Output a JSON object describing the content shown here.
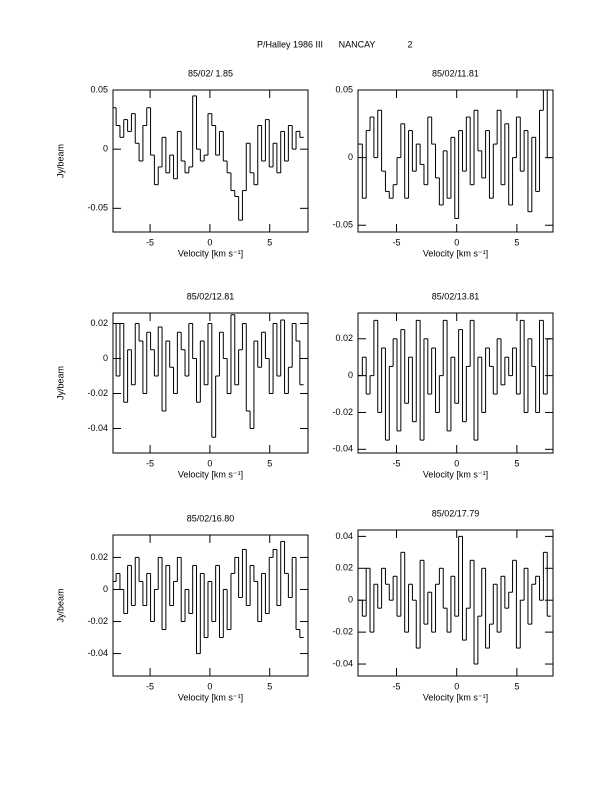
{
  "header": {
    "title": "P/Halley 1986 III",
    "observatory": "NANCAY",
    "page": "2"
  },
  "chart_data": [
    {
      "type": "step",
      "title": "85/02/ 1.85",
      "xlabel": "Velocity [km s⁻¹]",
      "ylabel": "Jy/beam",
      "xlim": [
        -8.1,
        8.2
      ],
      "ylim": [
        -0.07,
        0.05
      ],
      "xticks": [
        -5,
        0,
        5
      ],
      "yticks": [
        -0.05,
        0,
        0.05
      ],
      "color": "#000000",
      "x": [
        -8,
        -7.68,
        -7.36,
        -7.04,
        -6.72,
        -6.4,
        -6.08,
        -5.76,
        -5.44,
        -5.12,
        -4.8,
        -4.48,
        -4.16,
        -3.84,
        -3.52,
        -3.2,
        -2.88,
        -2.56,
        -2.24,
        -1.92,
        -1.6,
        -1.28,
        -0.96,
        -0.64,
        -0.32,
        0,
        0.32,
        0.64,
        0.96,
        1.28,
        1.6,
        1.92,
        2.24,
        2.56,
        2.88,
        3.2,
        3.52,
        3.84,
        4.16,
        4.48,
        4.8,
        5.12,
        5.44,
        5.76,
        6.08,
        6.4,
        6.72,
        7.04,
        7.36,
        7.68
      ],
      "values": [
        0.035,
        0.02,
        0.01,
        0.025,
        0.015,
        0.03,
        0.005,
        -0.01,
        0.02,
        0.035,
        -0.005,
        -0.03,
        -0.015,
        0.01,
        -0.02,
        -0.005,
        -0.025,
        0.015,
        -0.01,
        -0.02,
        -0.015,
        0.045,
        0.0,
        -0.01,
        -0.005,
        0.03,
        0.02,
        -0.005,
        0.015,
        -0.01,
        -0.02,
        -0.035,
        -0.04,
        -0.06,
        -0.035,
        0.005,
        -0.02,
        -0.03,
        0.02,
        -0.01,
        0.025,
        -0.015,
        0.005,
        -0.02,
        0.015,
        -0.01,
        0.02,
        0.0,
        0.015,
        0.01
      ]
    },
    {
      "type": "step",
      "title": "85/02/11.81",
      "xlabel": "Velocity [km s⁻¹]",
      "xlim": [
        -8.2,
        8.0
      ],
      "ylim": [
        -0.055,
        0.05
      ],
      "xticks": [
        -5,
        0,
        5
      ],
      "yticks": [
        -0.05,
        0,
        0.05
      ],
      "color": "#000000",
      "x": [
        -8,
        -7.68,
        -7.36,
        -7.04,
        -6.72,
        -6.4,
        -6.08,
        -5.76,
        -5.44,
        -5.12,
        -4.8,
        -4.48,
        -4.16,
        -3.84,
        -3.52,
        -3.2,
        -2.88,
        -2.56,
        -2.24,
        -1.92,
        -1.6,
        -1.28,
        -0.96,
        -0.64,
        -0.32,
        0,
        0.32,
        0.64,
        0.96,
        1.28,
        1.6,
        1.92,
        2.24,
        2.56,
        2.88,
        3.2,
        3.52,
        3.84,
        4.16,
        4.48,
        4.8,
        5.12,
        5.44,
        5.76,
        6.08,
        6.4,
        6.72,
        7.04,
        7.36,
        7.68
      ],
      "values": [
        0.01,
        -0.03,
        0.02,
        0.03,
        0.0,
        0.035,
        -0.01,
        -0.025,
        -0.03,
        -0.02,
        0.0,
        0.025,
        -0.03,
        0.02,
        -0.01,
        0.01,
        -0.005,
        -0.02,
        0.03,
        0.01,
        -0.015,
        -0.035,
        0.005,
        -0.03,
        0.015,
        -0.045,
        0.02,
        -0.01,
        0.03,
        -0.02,
        0.035,
        0.005,
        -0.015,
        0.02,
        -0.03,
        0.01,
        0.035,
        -0.02,
        0.025,
        -0.035,
        0.0,
        0.03,
        -0.01,
        0.02,
        -0.04,
        0.015,
        -0.025,
        0.035,
        0.05,
        0.0
      ]
    },
    {
      "type": "step",
      "title": "85/02/12.81",
      "xlabel": "Velocity [km s⁻¹]",
      "ylabel": "Jy/beam",
      "xlim": [
        -8.1,
        8.2
      ],
      "ylim": [
        -0.054,
        0.026
      ],
      "xticks": [
        -5,
        0,
        5
      ],
      "yticks": [
        -0.04,
        -0.02,
        0,
        0.02
      ],
      "color": "#000000",
      "x": [
        -8,
        -7.68,
        -7.36,
        -7.04,
        -6.72,
        -6.4,
        -6.08,
        -5.76,
        -5.44,
        -5.12,
        -4.8,
        -4.48,
        -4.16,
        -3.84,
        -3.52,
        -3.2,
        -2.88,
        -2.56,
        -2.24,
        -1.92,
        -1.6,
        -1.28,
        -0.96,
        -0.64,
        -0.32,
        0,
        0.32,
        0.64,
        0.96,
        1.28,
        1.6,
        1.92,
        2.24,
        2.56,
        2.88,
        3.2,
        3.52,
        3.84,
        4.16,
        4.48,
        4.8,
        5.12,
        5.44,
        5.76,
        6.08,
        6.4,
        6.72,
        7.04,
        7.36,
        7.68
      ],
      "values": [
        0.02,
        -0.01,
        0.02,
        -0.025,
        0.005,
        -0.015,
        0.02,
        0.01,
        -0.02,
        0.015,
        0.005,
        -0.01,
        0.018,
        -0.03,
        0.01,
        -0.005,
        -0.02,
        0.015,
        0.005,
        -0.01,
        0.02,
        0.0,
        -0.025,
        0.01,
        -0.015,
        0.02,
        -0.045,
        -0.01,
        0.015,
        0.0,
        -0.02,
        0.025,
        -0.015,
        0.005,
        0.02,
        -0.03,
        -0.04,
        0.01,
        -0.005,
        0.015,
        0.0,
        -0.02,
        0.02,
        -0.01,
        0.022,
        -0.02,
        -0.005,
        0.02,
        0.01,
        -0.015
      ]
    },
    {
      "type": "step",
      "title": "85/02/13.81",
      "xlabel": "Velocity [km s⁻¹]",
      "xlim": [
        -8.2,
        8.0
      ],
      "ylim": [
        -0.042,
        0.034
      ],
      "xticks": [
        -5,
        0,
        5
      ],
      "yticks": [
        -0.04,
        -0.02,
        0,
        0.02
      ],
      "color": "#000000",
      "x": [
        -8,
        -7.68,
        -7.36,
        -7.04,
        -6.72,
        -6.4,
        -6.08,
        -5.76,
        -5.44,
        -5.12,
        -4.8,
        -4.48,
        -4.16,
        -3.84,
        -3.52,
        -3.2,
        -2.88,
        -2.56,
        -2.24,
        -1.92,
        -1.6,
        -1.28,
        -0.96,
        -0.64,
        -0.32,
        0,
        0.32,
        0.64,
        0.96,
        1.28,
        1.6,
        1.92,
        2.24,
        2.56,
        2.88,
        3.2,
        3.52,
        3.84,
        4.16,
        4.48,
        4.8,
        5.12,
        5.44,
        5.76,
        6.08,
        6.4,
        6.72,
        7.04,
        7.36,
        7.68
      ],
      "values": [
        0.0,
        0.01,
        -0.01,
        0.0,
        0.03,
        -0.02,
        0.015,
        -0.035,
        0.005,
        0.02,
        -0.03,
        0.025,
        -0.015,
        0.01,
        -0.025,
        0.03,
        -0.035,
        0.02,
        -0.01,
        0.015,
        -0.02,
        0.0,
        0.03,
        -0.03,
        0.01,
        -0.015,
        0.025,
        -0.025,
        0.005,
        0.03,
        -0.035,
        0.01,
        -0.02,
        0.015,
        0.005,
        -0.01,
        0.02,
        -0.005,
        0.01,
        0.0,
        0.015,
        -0.01,
        0.03,
        -0.02,
        0.02,
        0.005,
        -0.02,
        0.03,
        -0.01,
        0.02
      ]
    },
    {
      "type": "step",
      "title": "85/02/16.80",
      "xlabel": "Velocity [km s⁻¹]",
      "ylabel": "Jy/beam",
      "xlim": [
        -8.1,
        8.2
      ],
      "ylim": [
        -0.054,
        0.034
      ],
      "xticks": [
        -5,
        0,
        5
      ],
      "yticks": [
        -0.04,
        -0.02,
        0,
        0.02
      ],
      "color": "#000000",
      "x": [
        -8,
        -7.68,
        -7.36,
        -7.04,
        -6.72,
        -6.4,
        -6.08,
        -5.76,
        -5.44,
        -5.12,
        -4.8,
        -4.48,
        -4.16,
        -3.84,
        -3.52,
        -3.2,
        -2.88,
        -2.56,
        -2.24,
        -1.92,
        -1.6,
        -1.28,
        -0.96,
        -0.64,
        -0.32,
        0,
        0.32,
        0.64,
        0.96,
        1.28,
        1.6,
        1.92,
        2.24,
        2.56,
        2.88,
        3.2,
        3.52,
        3.84,
        4.16,
        4.48,
        4.8,
        5.12,
        5.44,
        5.76,
        6.08,
        6.4,
        6.72,
        7.04,
        7.36,
        7.68
      ],
      "values": [
        0.005,
        0.01,
        0.0,
        -0.015,
        0.015,
        -0.01,
        0.02,
        0.005,
        -0.01,
        0.01,
        -0.02,
        0.0,
        0.02,
        -0.025,
        0.015,
        -0.01,
        0.005,
        0.02,
        -0.02,
        0.0,
        -0.015,
        0.015,
        -0.04,
        0.01,
        -0.03,
        0.005,
        -0.02,
        0.015,
        -0.03,
        0.0,
        -0.025,
        0.01,
        0.02,
        -0.005,
        0.025,
        -0.01,
        0.015,
        0.005,
        -0.02,
        0.01,
        -0.015,
        0.02,
        0.025,
        -0.01,
        0.03,
        0.01,
        -0.005,
        0.02,
        -0.025,
        -0.03
      ]
    },
    {
      "type": "step",
      "title": "85/02/17.79",
      "xlabel": "Velocity [km s⁻¹]",
      "xlim": [
        -8.2,
        8.0
      ],
      "ylim": [
        -0.0475,
        0.044
      ],
      "xticks": [
        -5,
        0,
        5
      ],
      "yticks": [
        -0.04,
        -0.02,
        0,
        0.02,
        0.04
      ],
      "color": "#000000",
      "x": [
        -8,
        -7.68,
        -7.36,
        -7.04,
        -6.72,
        -6.4,
        -6.08,
        -5.76,
        -5.44,
        -5.12,
        -4.8,
        -4.48,
        -4.16,
        -3.84,
        -3.52,
        -3.2,
        -2.88,
        -2.56,
        -2.24,
        -1.92,
        -1.6,
        -1.28,
        -0.96,
        -0.64,
        -0.32,
        0,
        0.32,
        0.64,
        0.96,
        1.28,
        1.6,
        1.92,
        2.24,
        2.56,
        2.88,
        3.2,
        3.52,
        3.84,
        4.16,
        4.48,
        4.8,
        5.12,
        5.44,
        5.76,
        6.08,
        6.4,
        6.72,
        7.04,
        7.36,
        7.68
      ],
      "values": [
        0.0,
        -0.01,
        0.02,
        -0.02,
        0.01,
        -0.005,
        0.02,
        0.01,
        0.0,
        0.015,
        -0.01,
        0.03,
        -0.02,
        0.01,
        0.0,
        -0.03,
        0.025,
        -0.015,
        0.005,
        -0.02,
        0.01,
        0.02,
        -0.005,
        -0.02,
        0.015,
        -0.01,
        0.04,
        -0.025,
        -0.005,
        0.025,
        -0.04,
        -0.01,
        0.02,
        -0.03,
        -0.015,
        0.01,
        -0.02,
        0.015,
        -0.005,
        0.005,
        0.025,
        -0.03,
        0.0,
        0.02,
        -0.015,
        0.01,
        0.015,
        0.0,
        0.03,
        -0.01
      ]
    }
  ]
}
